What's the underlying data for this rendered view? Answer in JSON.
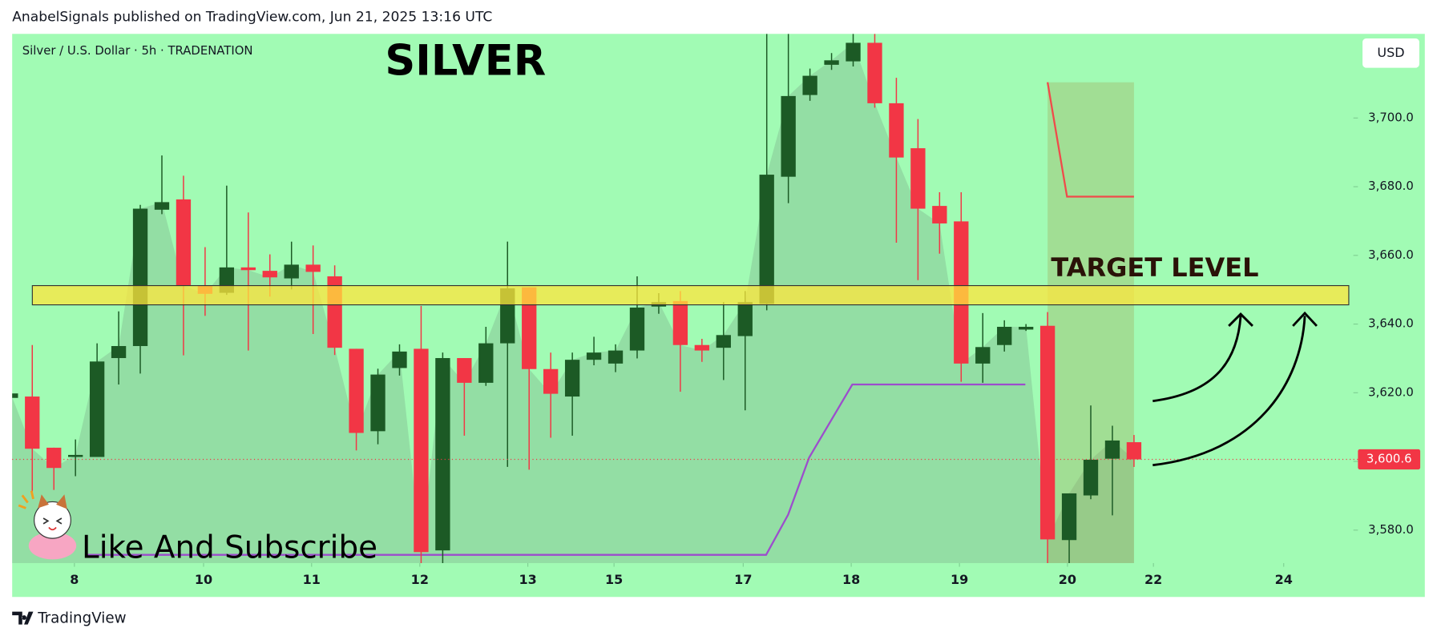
{
  "header": "AnabelSignals published on TradingView.com, Jun 21, 2025 13:16 UTC",
  "footer_brand": "TradingView",
  "chart_data": {
    "type": "candlestick",
    "title": "SILVER",
    "symbol": "Silver / U.S. Dollar · 5h · TRADENATION",
    "currency": "USD",
    "x": [
      -1,
      0,
      1,
      2,
      3,
      4,
      5,
      6,
      7,
      8,
      9,
      10,
      11,
      12,
      13,
      14,
      15,
      16,
      17,
      18,
      19,
      20,
      21,
      22,
      23,
      24,
      25,
      26,
      27,
      28,
      29,
      30,
      31,
      32,
      33,
      34,
      35,
      36,
      37,
      38,
      39,
      40,
      41,
      42,
      43,
      44,
      45,
      46,
      47,
      48,
      49,
      50,
      51
    ],
    "open": [
      3618.5,
      3618.9,
      3604,
      3601.3,
      3601.3,
      3630.1,
      3633.6,
      3673.3,
      3676.3,
      3651.2,
      3649.1,
      3656.5,
      3655.5,
      3653.3,
      3657.3,
      3653.9,
      3632.8,
      3608.8,
      3627.2,
      3632.8,
      3574.1,
      3630.1,
      3622.9,
      3634.4,
      3650.7,
      3626.9,
      3618.9,
      3629.6,
      3628.5,
      3632.3,
      3645.1,
      3646.7,
      3633.9,
      3633.1,
      3636.5,
      3645.9,
      3682.9,
      3706.7,
      3715.5,
      3716.5,
      3721.9,
      3704.3,
      3691.2,
      3674.4,
      3669.9,
      3628.5,
      3633.9,
      3638.4,
      3639.5,
      3577.1,
      3590.1,
      3600.8,
      3605.6
    ],
    "high": [
      3620.2,
      3633.9,
      3604,
      3606.4,
      3634.4,
      3643.7,
      3674.7,
      3689.1,
      3683.2,
      3662.4,
      3680.3,
      3672.5,
      3660.3,
      3664,
      3662.9,
      3657.1,
      3632.8,
      3627,
      3634.1,
      3645.3,
      3631.7,
      3630.1,
      3639.2,
      3664,
      3650.7,
      3631.7,
      3631.7,
      3636.3,
      3634.1,
      3653.9,
      3649,
      3649.6,
      3635.7,
      3646.4,
      3649.6,
      3724.5,
      3724.5,
      3714.4,
      3718.9,
      3724.5,
      3724.5,
      3711.7,
      3699.7,
      3678.4,
      3678.4,
      3643.2,
      3641.1,
      3640,
      3643.5,
      3590.7,
      3616.3,
      3610.4,
      3607.7
    ],
    "low": [
      3618.2,
      3591.2,
      3591.7,
      3595.7,
      3601.3,
      3622.4,
      3625.6,
      3672,
      3630.9,
      3642.4,
      3648.5,
      3632.3,
      3648,
      3650.1,
      3637.1,
      3631,
      3603.2,
      3605,
      3625,
      3570.4,
      3570.4,
      3607.5,
      3622,
      3598.4,
      3597.6,
      3606.9,
      3607.5,
      3628,
      3626,
      3630,
      3643,
      3620.3,
      3629,
      3623.7,
      3614.9,
      3644,
      3675.2,
      3705,
      3714,
      3715,
      3703,
      3663.7,
      3652.8,
      3660.5,
      3623.2,
      3622.9,
      3632,
      3638,
      3570.4,
      3570.4,
      3589,
      3584.3,
      3598.4
    ],
    "close": [
      3619.8,
      3603.7,
      3598.1,
      3601.9,
      3629.1,
      3633.6,
      3673.6,
      3675.5,
      3651.2,
      3648.8,
      3656.5,
      3655.7,
      3653.6,
      3657.3,
      3655.2,
      3633.1,
      3608.3,
      3625.3,
      3632,
      3573.6,
      3630.1,
      3622.9,
      3634.4,
      3650.4,
      3626.9,
      3619.7,
      3629.6,
      3631.7,
      3632.3,
      3644.8,
      3646.4,
      3633.9,
      3632.3,
      3636.8,
      3646.4,
      3683.5,
      3706.4,
      3712.3,
      3716.8,
      3721.9,
      3704.3,
      3688.5,
      3673.6,
      3669.3,
      3628.5,
      3633.3,
      3639.2,
      3639.2,
      3577.3,
      3590.7,
      3600.5,
      3606.1,
      3600.6
    ],
    "up_color": "#1c5a25",
    "down_color": "#f23645",
    "xlim": [
      -0.93,
      61.07
    ],
    "xticks": [
      {
        "value": 1.95,
        "label": "8"
      },
      {
        "value": 7.93,
        "label": "10"
      },
      {
        "value": 12.93,
        "label": "11"
      },
      {
        "value": 17.94,
        "label": "12"
      },
      {
        "value": 22.94,
        "label": "13"
      },
      {
        "value": 26.93,
        "label": "15"
      },
      {
        "value": 32.91,
        "label": "17"
      },
      {
        "value": 37.91,
        "label": "18"
      },
      {
        "value": 42.92,
        "label": "19"
      },
      {
        "value": 47.92,
        "label": "20"
      },
      {
        "value": 51.9,
        "label": "22"
      },
      {
        "value": 57.93,
        "label": "24"
      }
    ],
    "ylim": [
      3570.4,
      3724.5
    ],
    "yticks": [
      {
        "value": 3580,
        "label": "3,580.0"
      },
      {
        "value": 3600,
        "label": "3,600.0"
      },
      {
        "value": 3620,
        "label": "3,620.0"
      },
      {
        "value": 3640,
        "label": "3,640.0"
      },
      {
        "value": 3660,
        "label": "3,660.0"
      },
      {
        "value": 3680,
        "label": "3,680.0"
      },
      {
        "value": 3700,
        "label": "3,700.0"
      }
    ],
    "last_price": {
      "value": 3600.6,
      "label": "3,600.6"
    },
    "annotations": {
      "target_zone": {
        "label": "TARGET LEVEL",
        "range": [
          3645.6,
          3651.2
        ]
      },
      "red_line": {
        "x": [
          47,
          47.9,
          51
        ],
        "y": [
          3710.4,
          3677.1,
          3677.1
        ]
      },
      "purple_line": {
        "x": [
          2.54,
          33.97,
          34.99,
          35.96,
          37.96,
          45.97
        ],
        "y": [
          3572.8,
          3572.8,
          3584.5,
          3601.1,
          3622.4,
          3622.4
        ]
      },
      "caption": "Like And Subscribe"
    }
  }
}
